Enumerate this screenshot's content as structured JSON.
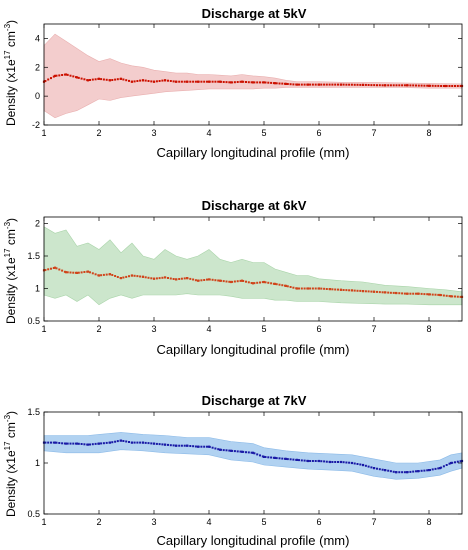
{
  "chart_data": [
    {
      "type": "line",
      "title": "Discharge at 5kV",
      "xlabel": "Capillary longitudinal profile (mm)",
      "ylabel": {
        "main": "Density (x1e",
        "exp1": "17",
        "unit": " cm",
        "exp2": "-3",
        "close": ")"
      },
      "xlim": [
        1,
        8.6
      ],
      "ylim": [
        -2,
        5
      ],
      "xticks": [
        1,
        2,
        3,
        4,
        5,
        6,
        7,
        8
      ],
      "yticks": [
        -2,
        0,
        2,
        4
      ],
      "colors": {
        "marker": "#cc1100",
        "band": "#f2c8c8",
        "bandEdge": "#e9b0b0"
      },
      "series": [
        {
          "points": [
            [
              1.0,
              1.0
            ],
            [
              1.2,
              1.4
            ],
            [
              1.4,
              1.5
            ],
            [
              1.6,
              1.3
            ],
            [
              1.8,
              1.1
            ],
            [
              2.0,
              1.2
            ],
            [
              2.2,
              1.1
            ],
            [
              2.4,
              1.2
            ],
            [
              2.6,
              1.0
            ],
            [
              2.8,
              1.1
            ],
            [
              3.0,
              1.0
            ],
            [
              3.2,
              1.1
            ],
            [
              3.4,
              1.0
            ],
            [
              3.6,
              1.0
            ],
            [
              3.8,
              1.0
            ],
            [
              4.0,
              1.0
            ],
            [
              4.2,
              1.0
            ],
            [
              4.4,
              0.95
            ],
            [
              4.6,
              1.0
            ],
            [
              4.8,
              0.95
            ],
            [
              5.0,
              0.95
            ],
            [
              5.2,
              0.9
            ],
            [
              5.4,
              0.85
            ],
            [
              5.6,
              0.8
            ],
            [
              5.8,
              0.8
            ],
            [
              6.0,
              0.8
            ],
            [
              6.4,
              0.8
            ],
            [
              6.8,
              0.78
            ],
            [
              7.2,
              0.75
            ],
            [
              7.6,
              0.75
            ],
            [
              8.0,
              0.72
            ],
            [
              8.3,
              0.7
            ],
            [
              8.6,
              0.7
            ]
          ],
          "band": [
            [
              1.0,
              -1.0,
              3.5
            ],
            [
              1.2,
              -1.5,
              4.3
            ],
            [
              1.4,
              -1.2,
              3.8
            ],
            [
              1.6,
              -1.0,
              3.3
            ],
            [
              1.8,
              -0.6,
              2.8
            ],
            [
              2.0,
              -0.2,
              2.4
            ],
            [
              2.2,
              -0.3,
              2.6
            ],
            [
              2.4,
              -0.1,
              2.3
            ],
            [
              2.6,
              0.0,
              2.1
            ],
            [
              2.8,
              0.1,
              2.0
            ],
            [
              3.0,
              0.2,
              1.8
            ],
            [
              3.2,
              0.3,
              1.7
            ],
            [
              3.4,
              0.35,
              1.6
            ],
            [
              3.6,
              0.4,
              1.6
            ],
            [
              3.8,
              0.45,
              1.5
            ],
            [
              4.0,
              0.5,
              1.5
            ],
            [
              4.2,
              0.5,
              1.45
            ],
            [
              4.4,
              0.5,
              1.4
            ],
            [
              4.6,
              0.5,
              1.5
            ],
            [
              4.8,
              0.5,
              1.4
            ],
            [
              5.0,
              0.55,
              1.35
            ],
            [
              5.2,
              0.55,
              1.25
            ],
            [
              5.4,
              0.6,
              1.1
            ],
            [
              5.6,
              0.6,
              1.0
            ],
            [
              6.0,
              0.6,
              1.0
            ],
            [
              6.5,
              0.6,
              0.95
            ],
            [
              7.0,
              0.6,
              0.95
            ],
            [
              7.5,
              0.6,
              0.92
            ],
            [
              8.0,
              0.55,
              0.88
            ],
            [
              8.6,
              0.55,
              0.85
            ]
          ]
        }
      ]
    },
    {
      "type": "line",
      "title": "Discharge at 6kV",
      "xlabel": "Capillary longitudinal profile (mm)",
      "ylabel": {
        "main": "Density (x1e",
        "exp1": "17",
        "unit": " cm",
        "exp2": "-3",
        "close": ")"
      },
      "xlim": [
        1,
        8.6
      ],
      "ylim": [
        0.5,
        2.1
      ],
      "xticks": [
        1,
        2,
        3,
        4,
        5,
        6,
        7,
        8
      ],
      "yticks": [
        0.5,
        1,
        1.5,
        2
      ],
      "yticklabels": [
        "0.5",
        "1",
        "1.5",
        "2"
      ],
      "colors": {
        "marker": "#d0441a",
        "band": "#c6e3c6",
        "bandEdge": "#a9d4a9"
      },
      "series": [
        {
          "points": [
            [
              1.0,
              1.28
            ],
            [
              1.2,
              1.32
            ],
            [
              1.4,
              1.25
            ],
            [
              1.6,
              1.24
            ],
            [
              1.8,
              1.26
            ],
            [
              2.0,
              1.2
            ],
            [
              2.2,
              1.22
            ],
            [
              2.4,
              1.16
            ],
            [
              2.6,
              1.2
            ],
            [
              2.8,
              1.18
            ],
            [
              3.0,
              1.15
            ],
            [
              3.2,
              1.17
            ],
            [
              3.4,
              1.14
            ],
            [
              3.6,
              1.16
            ],
            [
              3.8,
              1.12
            ],
            [
              4.0,
              1.14
            ],
            [
              4.2,
              1.12
            ],
            [
              4.4,
              1.1
            ],
            [
              4.6,
              1.12
            ],
            [
              4.8,
              1.08
            ],
            [
              5.0,
              1.1
            ],
            [
              5.2,
              1.07
            ],
            [
              5.4,
              1.04
            ],
            [
              5.6,
              1.0
            ],
            [
              5.8,
              1.0
            ],
            [
              6.0,
              1.0
            ],
            [
              6.2,
              0.99
            ],
            [
              6.4,
              0.98
            ],
            [
              6.6,
              0.97
            ],
            [
              6.8,
              0.96
            ],
            [
              7.0,
              0.95
            ],
            [
              7.2,
              0.94
            ],
            [
              7.4,
              0.93
            ],
            [
              7.6,
              0.92
            ],
            [
              7.8,
              0.92
            ],
            [
              8.0,
              0.91
            ],
            [
              8.2,
              0.9
            ],
            [
              8.4,
              0.88
            ],
            [
              8.6,
              0.87
            ]
          ],
          "band": [
            [
              1.0,
              0.9,
              1.95
            ],
            [
              1.2,
              0.85,
              1.85
            ],
            [
              1.4,
              0.9,
              1.9
            ],
            [
              1.6,
              0.8,
              1.65
            ],
            [
              1.8,
              0.9,
              1.7
            ],
            [
              2.0,
              0.75,
              1.6
            ],
            [
              2.2,
              0.85,
              1.75
            ],
            [
              2.4,
              0.9,
              1.55
            ],
            [
              2.6,
              0.85,
              1.7
            ],
            [
              2.8,
              0.9,
              1.5
            ],
            [
              3.0,
              0.9,
              1.45
            ],
            [
              3.2,
              0.9,
              1.6
            ],
            [
              3.4,
              0.9,
              1.5
            ],
            [
              3.6,
              0.92,
              1.45
            ],
            [
              3.8,
              0.9,
              1.5
            ],
            [
              4.0,
              0.9,
              1.6
            ],
            [
              4.2,
              0.9,
              1.45
            ],
            [
              4.4,
              0.88,
              1.4
            ],
            [
              4.6,
              0.85,
              1.45
            ],
            [
              4.8,
              0.85,
              1.4
            ],
            [
              5.0,
              0.85,
              1.4
            ],
            [
              5.2,
              0.82,
              1.3
            ],
            [
              5.4,
              0.82,
              1.25
            ],
            [
              5.6,
              0.8,
              1.2
            ],
            [
              5.8,
              0.8,
              1.2
            ],
            [
              6.0,
              0.8,
              1.15
            ],
            [
              6.4,
              0.78,
              1.12
            ],
            [
              6.8,
              0.77,
              1.1
            ],
            [
              7.2,
              0.76,
              1.05
            ],
            [
              7.6,
              0.76,
              1.03
            ],
            [
              8.0,
              0.75,
              1.0
            ],
            [
              8.3,
              0.75,
              0.98
            ],
            [
              8.6,
              0.75,
              0.95
            ]
          ]
        }
      ]
    },
    {
      "type": "line",
      "title": "Discharge at 7kV",
      "xlabel": "Capillary longitudinal profile (mm)",
      "ylabel": {
        "main": "Density (x1e",
        "exp1": "17",
        "unit": " cm",
        "exp2": "-3",
        "close": ")"
      },
      "xlim": [
        1,
        8.6
      ],
      "ylim": [
        0.5,
        1.5
      ],
      "xticks": [
        1,
        2,
        3,
        4,
        5,
        6,
        7,
        8
      ],
      "yticks": [
        0.5,
        1,
        1.5
      ],
      "yticklabels": [
        "0.5",
        "1",
        "1.5"
      ],
      "colors": {
        "marker": "#1a1aa6",
        "band": "#a9cdf0",
        "bandEdge": "#8dbbe8"
      },
      "series": [
        {
          "points": [
            [
              1.0,
              1.2
            ],
            [
              1.2,
              1.2
            ],
            [
              1.4,
              1.19
            ],
            [
              1.6,
              1.19
            ],
            [
              1.8,
              1.18
            ],
            [
              2.0,
              1.19
            ],
            [
              2.2,
              1.2
            ],
            [
              2.4,
              1.22
            ],
            [
              2.6,
              1.2
            ],
            [
              2.8,
              1.2
            ],
            [
              3.0,
              1.19
            ],
            [
              3.2,
              1.18
            ],
            [
              3.4,
              1.17
            ],
            [
              3.6,
              1.17
            ],
            [
              3.8,
              1.16
            ],
            [
              4.0,
              1.16
            ],
            [
              4.2,
              1.13
            ],
            [
              4.4,
              1.12
            ],
            [
              4.6,
              1.11
            ],
            [
              4.8,
              1.1
            ],
            [
              5.0,
              1.06
            ],
            [
              5.2,
              1.05
            ],
            [
              5.4,
              1.04
            ],
            [
              5.6,
              1.03
            ],
            [
              5.8,
              1.02
            ],
            [
              6.0,
              1.02
            ],
            [
              6.2,
              1.01
            ],
            [
              6.4,
              1.01
            ],
            [
              6.6,
              1.0
            ],
            [
              6.8,
              0.98
            ],
            [
              7.0,
              0.95
            ],
            [
              7.2,
              0.93
            ],
            [
              7.4,
              0.91
            ],
            [
              7.6,
              0.91
            ],
            [
              7.8,
              0.92
            ],
            [
              8.0,
              0.93
            ],
            [
              8.2,
              0.95
            ],
            [
              8.4,
              1.0
            ],
            [
              8.6,
              1.02
            ]
          ],
          "band": [
            [
              1.0,
              1.12,
              1.27
            ],
            [
              1.4,
              1.1,
              1.27
            ],
            [
              1.8,
              1.1,
              1.27
            ],
            [
              2.0,
              1.1,
              1.28
            ],
            [
              2.4,
              1.13,
              1.3
            ],
            [
              2.8,
              1.12,
              1.28
            ],
            [
              3.2,
              1.1,
              1.27
            ],
            [
              3.6,
              1.09,
              1.25
            ],
            [
              4.0,
              1.08,
              1.25
            ],
            [
              4.4,
              1.03,
              1.21
            ],
            [
              4.8,
              1.01,
              1.19
            ],
            [
              5.0,
              0.98,
              1.15
            ],
            [
              5.4,
              0.96,
              1.12
            ],
            [
              5.8,
              0.94,
              1.1
            ],
            [
              6.2,
              0.93,
              1.09
            ],
            [
              6.6,
              0.92,
              1.08
            ],
            [
              7.0,
              0.87,
              1.04
            ],
            [
              7.4,
              0.84,
              1.0
            ],
            [
              7.8,
              0.85,
              1.0
            ],
            [
              8.2,
              0.88,
              1.03
            ],
            [
              8.4,
              0.92,
              1.08
            ],
            [
              8.6,
              0.95,
              1.1
            ]
          ]
        }
      ]
    }
  ]
}
